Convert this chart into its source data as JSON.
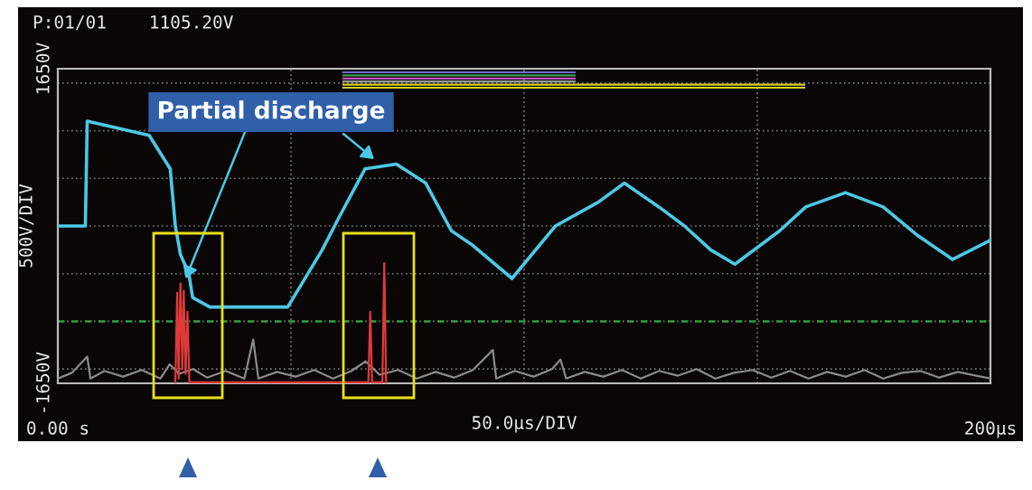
{
  "chart_data": {
    "type": "line",
    "xlim": [
      0,
      200
    ],
    "ylim": [
      -1650,
      1650
    ],
    "xticks": [
      {
        "value": 0,
        "label": "0.00 s"
      },
      {
        "value": 50,
        "label": null
      },
      {
        "value": 100,
        "label": null
      },
      {
        "value": 150,
        "label": null
      },
      {
        "value": 200,
        "label": "200µs"
      }
    ],
    "yticks": [
      {
        "value": -1650,
        "label": "-1650V"
      },
      {
        "value": -1500,
        "label": null
      },
      {
        "value": -1000,
        "label": null
      },
      {
        "value": -500,
        "label": null
      },
      {
        "value": 0,
        "label": null
      },
      {
        "value": 500,
        "label": null
      },
      {
        "value": 1000,
        "label": null
      },
      {
        "value": 1500,
        "label": null
      },
      {
        "value": 1650,
        "label": "1650V"
      }
    ],
    "xlabel": "50.0µs/DIV",
    "ylabel": "500V/DIV",
    "grid": true,
    "ref_lines": [
      {
        "axis": "y",
        "value": -1000,
        "color": "#2e9e3e",
        "line_style": "dashed"
      }
    ],
    "annotations": [
      "P:01/01    1105.20V",
      {
        "text": "Partial discharge",
        "x": 27,
        "y": -600
      }
    ],
    "series": [
      {
        "color": "#8a8a8a",
        "x": [
          0,
          3,
          6.3,
          7,
          10,
          14,
          18,
          22,
          24,
          26,
          29,
          32,
          36,
          40,
          41.9,
          43,
          47,
          51,
          55,
          59,
          63,
          66,
          69,
          73,
          77,
          81,
          85,
          89,
          93.3,
          94,
          98,
          102,
          106,
          107.8,
          109,
          113,
          117,
          121,
          125,
          129,
          133,
          137,
          141,
          145,
          149,
          153,
          157,
          161,
          165,
          169,
          173,
          177,
          181,
          185,
          189,
          193,
          197,
          200
        ],
        "values": [
          -1600,
          -1540,
          -1370,
          -1600,
          -1520,
          -1580,
          -1510,
          -1600,
          -1450,
          -1550,
          -1500,
          -1590,
          -1520,
          -1600,
          -1190,
          -1600,
          -1530,
          -1580,
          -1510,
          -1600,
          -1520,
          -1420,
          -1560,
          -1510,
          -1600,
          -1530,
          -1590,
          -1510,
          -1300,
          -1600,
          -1520,
          -1580,
          -1500,
          -1400,
          -1600,
          -1530,
          -1580,
          -1510,
          -1600,
          -1520,
          -1570,
          -1500,
          -1600,
          -1540,
          -1510,
          -1590,
          -1520,
          -1600,
          -1530,
          -1580,
          -1510,
          -1600,
          -1540,
          -1520,
          -1590,
          -1530,
          -1570,
          -1600
        ]
      },
      {
        "color": "#e03a3a",
        "x": [
          25.2,
          25.6,
          25.9,
          26.3,
          26.7,
          27.0,
          27.4,
          27.8,
          28.2,
          66.6,
          67.0,
          67.4,
          69.6,
          70.0,
          70.4
        ],
        "values": [
          -1640,
          -700,
          -1600,
          -600,
          -1500,
          -680,
          -1550,
          -900,
          -1640,
          -1640,
          -900,
          -1640,
          -1640,
          -390,
          -1640
        ]
      },
      {
        "color": "#4cc8e6",
        "x": [
          0,
          5.9,
          6.3,
          19.6,
          24.1,
          25.2,
          26.3,
          28.1,
          28.9,
          32.6,
          43.7,
          49.3,
          56.7,
          60.4,
          65.9,
          72.6,
          78.9,
          84.4,
          88.9,
          97.4,
          106.7,
          115.9,
          121.5,
          128.9,
          134.4,
          140,
          145.2,
          154.8,
          160.4,
          168.9,
          177,
          184.4,
          191.9,
          200
        ],
        "values": [
          0,
          0,
          1100,
          950,
          600,
          0,
          -300,
          -500,
          -750,
          -850,
          -850,
          -850,
          -250,
          100,
          600,
          650,
          450,
          -50,
          -200,
          -550,
          0,
          250,
          450,
          200,
          0,
          -250,
          -400,
          -50,
          200,
          350,
          200,
          -100,
          -350,
          -150
        ]
      }
    ]
  }
}
